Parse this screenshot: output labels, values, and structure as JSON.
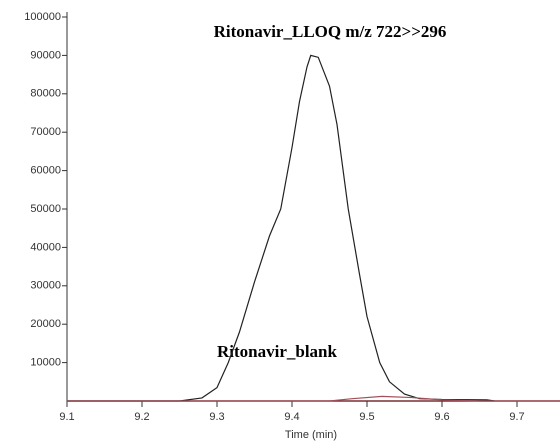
{
  "chart_data": {
    "type": "line",
    "xlabel": "Time (min)",
    "xlim": [
      9.1,
      9.76
    ],
    "ylim": [
      0,
      100000
    ],
    "xticks": [
      9.1,
      9.2,
      9.3,
      9.4,
      9.5,
      9.6,
      9.7
    ],
    "yticks": [
      10000,
      20000,
      30000,
      40000,
      50000,
      60000,
      70000,
      80000,
      90000,
      100000
    ],
    "series": [
      {
        "name": "Ritonavir_LLOQ  m/z 722>>296",
        "color": "#222222",
        "x": [
          9.1,
          9.25,
          9.28,
          9.3,
          9.315,
          9.33,
          9.35,
          9.37,
          9.385,
          9.4,
          9.41,
          9.42,
          9.425,
          9.435,
          9.45,
          9.46,
          9.475,
          9.49,
          9.5,
          9.517,
          9.53,
          9.55,
          9.57,
          9.6,
          9.66,
          9.67
        ],
        "values": [
          0,
          0,
          800,
          3500,
          10000,
          18000,
          31000,
          43000,
          50000,
          66000,
          78000,
          87000,
          90000,
          89500,
          82000,
          72000,
          50000,
          33000,
          22000,
          10000,
          5000,
          1800,
          600,
          400,
          300,
          0
        ]
      },
      {
        "name": "Ritonavir_blank",
        "color": "#a0505a",
        "x": [
          9.1,
          9.45,
          9.48,
          9.52,
          9.56,
          9.6,
          9.65,
          9.76
        ],
        "values": [
          0,
          0,
          600,
          1200,
          900,
          300,
          0,
          0
        ]
      }
    ]
  }
}
